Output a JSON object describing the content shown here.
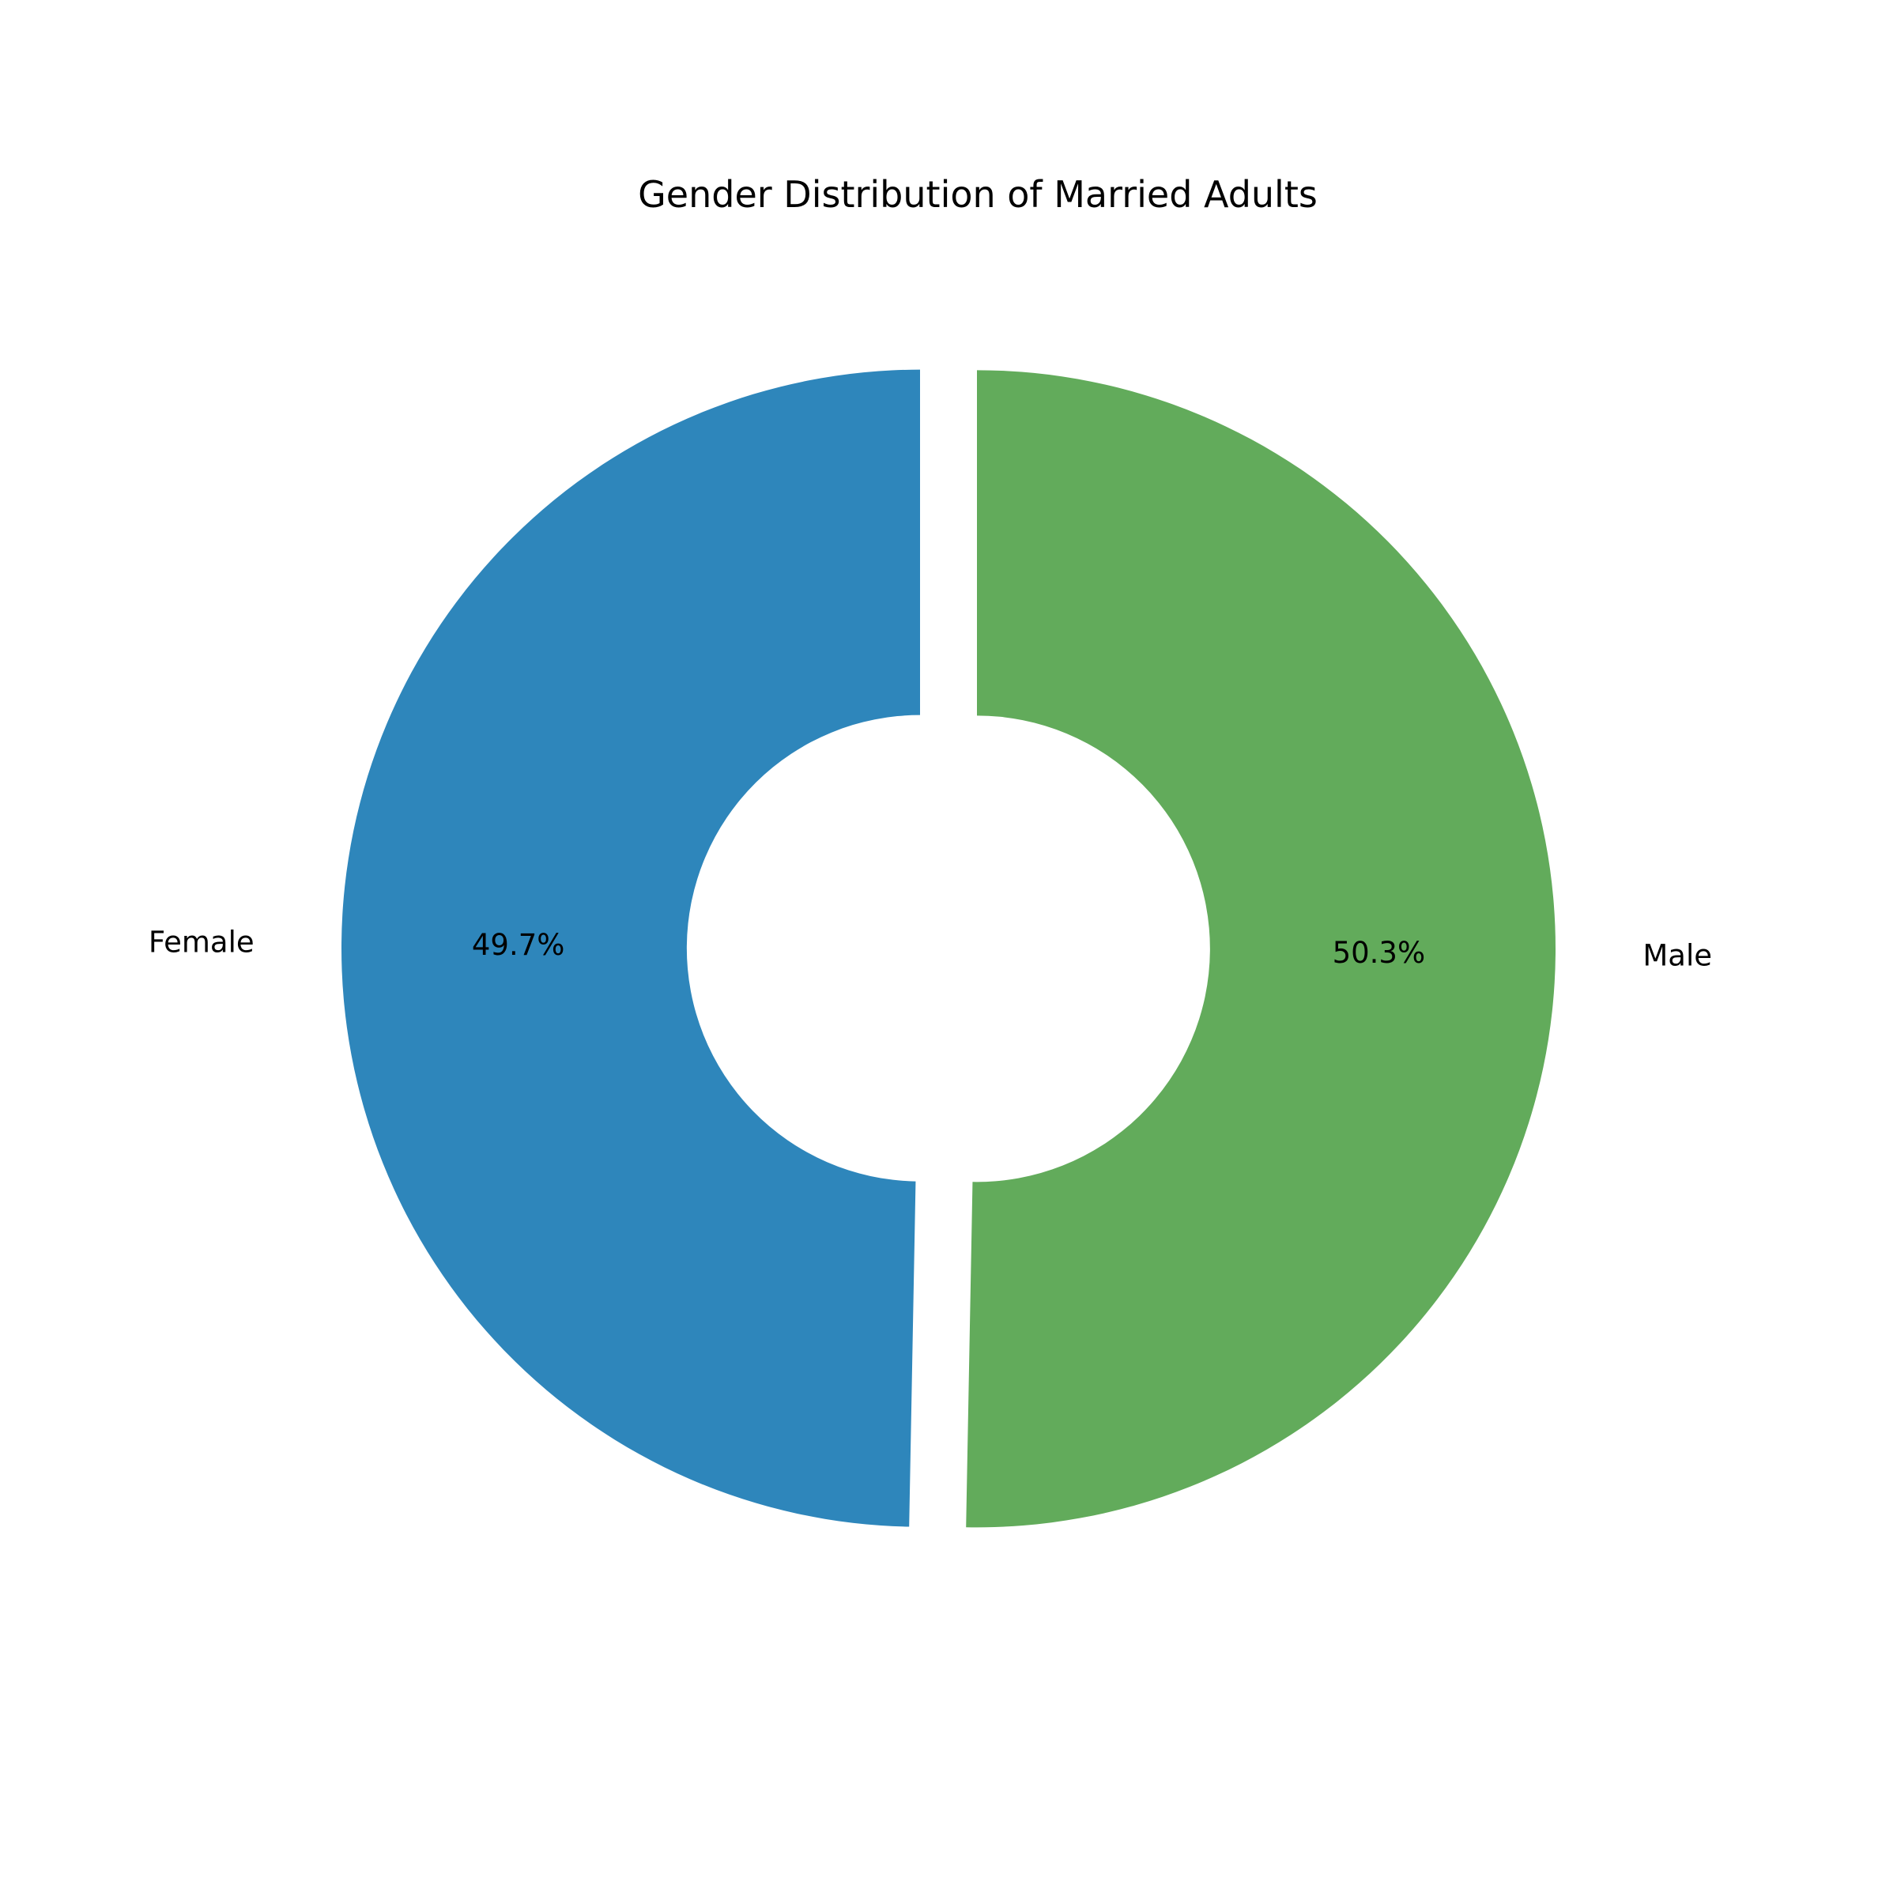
{
  "chart_data": {
    "type": "pie",
    "style": "donut",
    "title": "Gender Distribution of Married Adults",
    "categories": [
      "Female",
      "Male"
    ],
    "values": [
      49.7,
      50.3
    ],
    "value_labels": [
      "49.7%",
      "50.3%"
    ],
    "colors": [
      "#2e86bb",
      "#62ab5b"
    ],
    "start_angle_deg": 90,
    "direction": "counterclockwise",
    "exploded": true,
    "legend": "none"
  }
}
